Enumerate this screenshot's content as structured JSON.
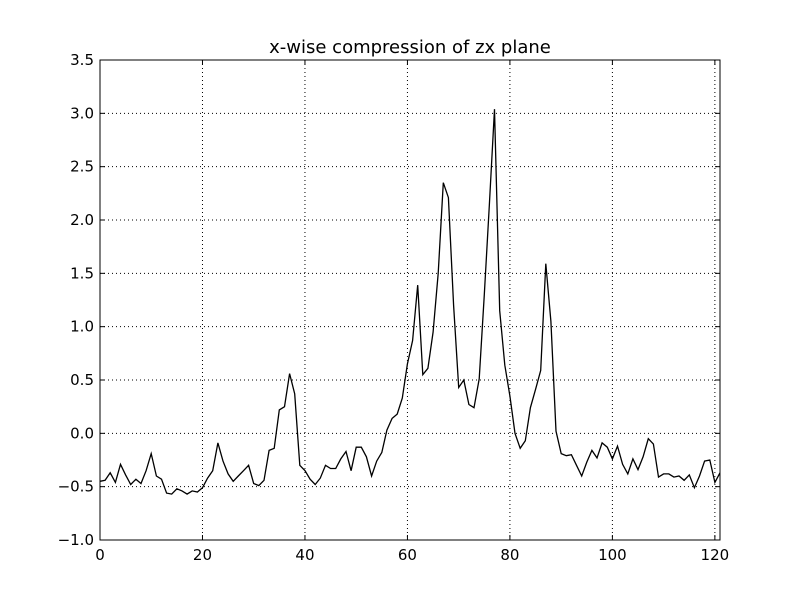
{
  "chart_data": {
    "type": "line",
    "title": "x-wise compression of zx plane",
    "xlabel": "",
    "ylabel": "",
    "xlim": [
      0,
      121
    ],
    "ylim": [
      -1.0,
      3.5
    ],
    "xticks": [
      0,
      20,
      40,
      60,
      80,
      100,
      120
    ],
    "xtick_labels": [
      "0",
      "20",
      "40",
      "60",
      "80",
      "100",
      "120"
    ],
    "yticks": [
      -1.0,
      -0.5,
      0.0,
      0.5,
      1.0,
      1.5,
      2.0,
      2.5,
      3.0,
      3.5
    ],
    "ytick_labels": [
      "−1.0",
      "−0.5",
      "0.0",
      "0.5",
      "1.0",
      "1.5",
      "2.0",
      "2.5",
      "3.0",
      "3.5"
    ],
    "grid": true,
    "line_color": "#000000",
    "x": [
      0,
      1,
      2,
      3,
      4,
      5,
      6,
      7,
      8,
      9,
      10,
      11,
      12,
      13,
      14,
      15,
      16,
      17,
      18,
      19,
      20,
      21,
      22,
      23,
      24,
      25,
      26,
      27,
      28,
      29,
      30,
      31,
      32,
      33,
      34,
      35,
      36,
      37,
      38,
      39,
      40,
      41,
      42,
      43,
      44,
      45,
      46,
      47,
      48,
      49,
      50,
      51,
      52,
      53,
      54,
      55,
      56,
      57,
      58,
      59,
      60,
      61,
      62,
      63,
      64,
      65,
      66,
      67,
      68,
      69,
      70,
      71,
      72,
      73,
      74,
      75,
      76,
      77,
      78,
      79,
      80,
      81,
      82,
      83,
      84,
      85,
      86,
      87,
      88,
      89,
      90,
      91,
      92,
      93,
      94,
      95,
      96,
      97,
      98,
      99,
      100,
      101,
      102,
      103,
      104,
      105,
      106,
      107,
      108,
      109,
      110,
      111,
      112,
      113,
      114,
      115,
      116,
      117,
      118,
      119,
      120,
      121
    ],
    "values": [
      -0.45,
      -0.44,
      -0.37,
      -0.46,
      -0.29,
      -0.39,
      -0.48,
      -0.43,
      -0.47,
      -0.35,
      -0.19,
      -0.4,
      -0.43,
      -0.56,
      -0.57,
      -0.52,
      -0.54,
      -0.57,
      -0.54,
      -0.55,
      -0.51,
      -0.42,
      -0.35,
      -0.09,
      -0.26,
      -0.38,
      -0.45,
      -0.4,
      -0.35,
      -0.3,
      -0.47,
      -0.49,
      -0.44,
      -0.16,
      -0.14,
      0.22,
      0.25,
      0.56,
      0.37,
      -0.3,
      -0.35,
      -0.43,
      -0.48,
      -0.42,
      -0.3,
      -0.33,
      -0.33,
      -0.24,
      -0.17,
      -0.35,
      -0.13,
      -0.13,
      -0.22,
      -0.4,
      -0.26,
      -0.18,
      0.03,
      0.14,
      0.18,
      0.33,
      0.65,
      0.87,
      1.39,
      0.55,
      0.61,
      0.95,
      1.5,
      2.35,
      2.21,
      1.2,
      0.43,
      0.5,
      0.27,
      0.24,
      0.51,
      1.3,
      2.15,
      3.04,
      1.15,
      0.64,
      0.35,
      0.0,
      -0.14,
      -0.07,
      0.24,
      0.41,
      0.59,
      1.59,
      1.05,
      0.02,
      -0.19,
      -0.21,
      -0.2,
      -0.3,
      -0.4,
      -0.27,
      -0.16,
      -0.23,
      -0.09,
      -0.13,
      -0.24,
      -0.12,
      -0.29,
      -0.38,
      -0.24,
      -0.34,
      -0.22,
      -0.05,
      -0.1,
      -0.41,
      -0.38,
      -0.38,
      -0.41,
      -0.4,
      -0.44,
      -0.39,
      -0.51,
      -0.4,
      -0.26,
      -0.25,
      -0.46,
      -0.37
    ]
  }
}
